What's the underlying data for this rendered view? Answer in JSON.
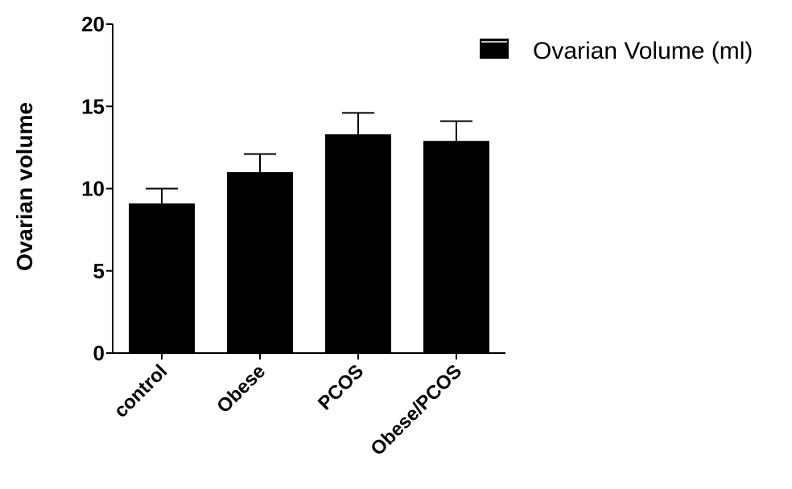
{
  "chart_data": {
    "type": "bar",
    "categories": [
      "control",
      "Obese",
      "PCOS",
      "Obese/PCOS"
    ],
    "series": [
      {
        "name": "Ovarian Volume (ml)",
        "values": [
          9.1,
          11.0,
          13.3,
          12.9
        ],
        "error_upper": [
          0.9,
          1.1,
          1.3,
          1.2
        ]
      }
    ],
    "yticks": [
      0,
      5,
      10,
      15,
      20
    ],
    "ylim": [
      0,
      20
    ],
    "xlabel": "",
    "ylabel": "Ovarian volume",
    "grid": false,
    "legend_position": "top-right",
    "bar_color": "#000000"
  }
}
